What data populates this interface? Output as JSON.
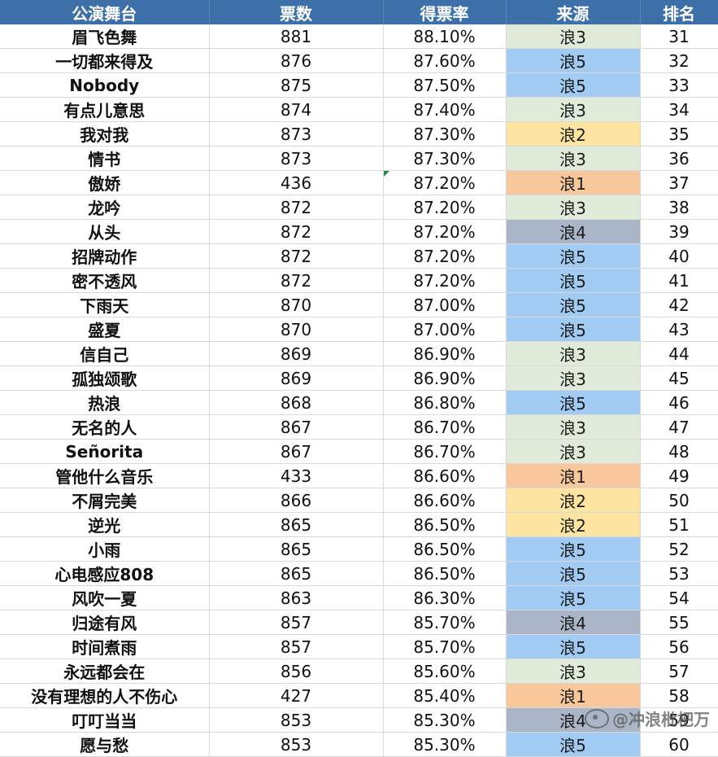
{
  "header": {
    "stage": "公演舞台",
    "votes": "票数",
    "rate": "得票率",
    "source": "来源",
    "rank": "排名"
  },
  "colors": {
    "header_bg": "#3d6fa8",
    "浪1": "#f8c79c",
    "浪2": "#fde4a0",
    "浪3": "#e0ecd9",
    "浪4": "#aab6c8",
    "浪5": "#a2cbf4"
  },
  "rows": [
    {
      "stage": "眉飞色舞",
      "votes": "881",
      "rate": "88.10%",
      "source": "浪3",
      "rank": "31"
    },
    {
      "stage": "一切都来得及",
      "votes": "876",
      "rate": "87.60%",
      "source": "浪5",
      "rank": "32"
    },
    {
      "stage": "Nobody",
      "votes": "875",
      "rate": "87.50%",
      "source": "浪5",
      "rank": "33"
    },
    {
      "stage": "有点儿意思",
      "votes": "874",
      "rate": "87.40%",
      "source": "浪3",
      "rank": "34"
    },
    {
      "stage": "我对我",
      "votes": "873",
      "rate": "87.30%",
      "source": "浪2",
      "rank": "35"
    },
    {
      "stage": "情书",
      "votes": "873",
      "rate": "87.30%",
      "source": "浪3",
      "rank": "36"
    },
    {
      "stage": "傲娇",
      "votes": "436",
      "rate": "87.20%",
      "source": "浪1",
      "rank": "37",
      "marker": true
    },
    {
      "stage": "龙吟",
      "votes": "872",
      "rate": "87.20%",
      "source": "浪3",
      "rank": "38"
    },
    {
      "stage": "从头",
      "votes": "872",
      "rate": "87.20%",
      "source": "浪4",
      "rank": "39"
    },
    {
      "stage": "招牌动作",
      "votes": "872",
      "rate": "87.20%",
      "source": "浪5",
      "rank": "40"
    },
    {
      "stage": "密不透风",
      "votes": "872",
      "rate": "87.20%",
      "source": "浪5",
      "rank": "41"
    },
    {
      "stage": "下雨天",
      "votes": "870",
      "rate": "87.00%",
      "source": "浪5",
      "rank": "42"
    },
    {
      "stage": "盛夏",
      "votes": "870",
      "rate": "87.00%",
      "source": "浪5",
      "rank": "43"
    },
    {
      "stage": "信自己",
      "votes": "869",
      "rate": "86.90%",
      "source": "浪3",
      "rank": "44"
    },
    {
      "stage": "孤独颂歌",
      "votes": "869",
      "rate": "86.90%",
      "source": "浪3",
      "rank": "45"
    },
    {
      "stage": "热浪",
      "votes": "868",
      "rate": "86.80%",
      "source": "浪5",
      "rank": "46"
    },
    {
      "stage": "无名的人",
      "votes": "867",
      "rate": "86.70%",
      "source": "浪3",
      "rank": "47"
    },
    {
      "stage": "Señorita",
      "votes": "867",
      "rate": "86.70%",
      "source": "浪3",
      "rank": "48"
    },
    {
      "stage": "管他什么音乐",
      "votes": "433",
      "rate": "86.60%",
      "source": "浪1",
      "rank": "49"
    },
    {
      "stage": "不屑完美",
      "votes": "866",
      "rate": "86.60%",
      "source": "浪2",
      "rank": "50"
    },
    {
      "stage": "逆光",
      "votes": "865",
      "rate": "86.50%",
      "source": "浪2",
      "rank": "51"
    },
    {
      "stage": "小雨",
      "votes": "865",
      "rate": "86.50%",
      "source": "浪5",
      "rank": "52"
    },
    {
      "stage": "心电感应808",
      "votes": "865",
      "rate": "86.50%",
      "source": "浪5",
      "rank": "53"
    },
    {
      "stage": "风吹一夏",
      "votes": "863",
      "rate": "86.30%",
      "source": "浪5",
      "rank": "54"
    },
    {
      "stage": "归途有风",
      "votes": "857",
      "rate": "85.70%",
      "source": "浪4",
      "rank": "55"
    },
    {
      "stage": "时间煮雨",
      "votes": "857",
      "rate": "85.70%",
      "source": "浪5",
      "rank": "56"
    },
    {
      "stage": "永远都会在",
      "votes": "856",
      "rate": "85.60%",
      "source": "浪3",
      "rank": "57"
    },
    {
      "stage": "没有理想的人不伤心",
      "votes": "427",
      "rate": "85.40%",
      "source": "浪1",
      "rank": "58"
    },
    {
      "stage": "叮叮当当",
      "votes": "853",
      "rate": "85.30%",
      "source": "浪4",
      "rank": "59"
    },
    {
      "stage": "愿与愁",
      "votes": "853",
      "rate": "85.30%",
      "source": "浪5",
      "rank": "60"
    }
  ],
  "watermark": "@冲浪枇杷万"
}
